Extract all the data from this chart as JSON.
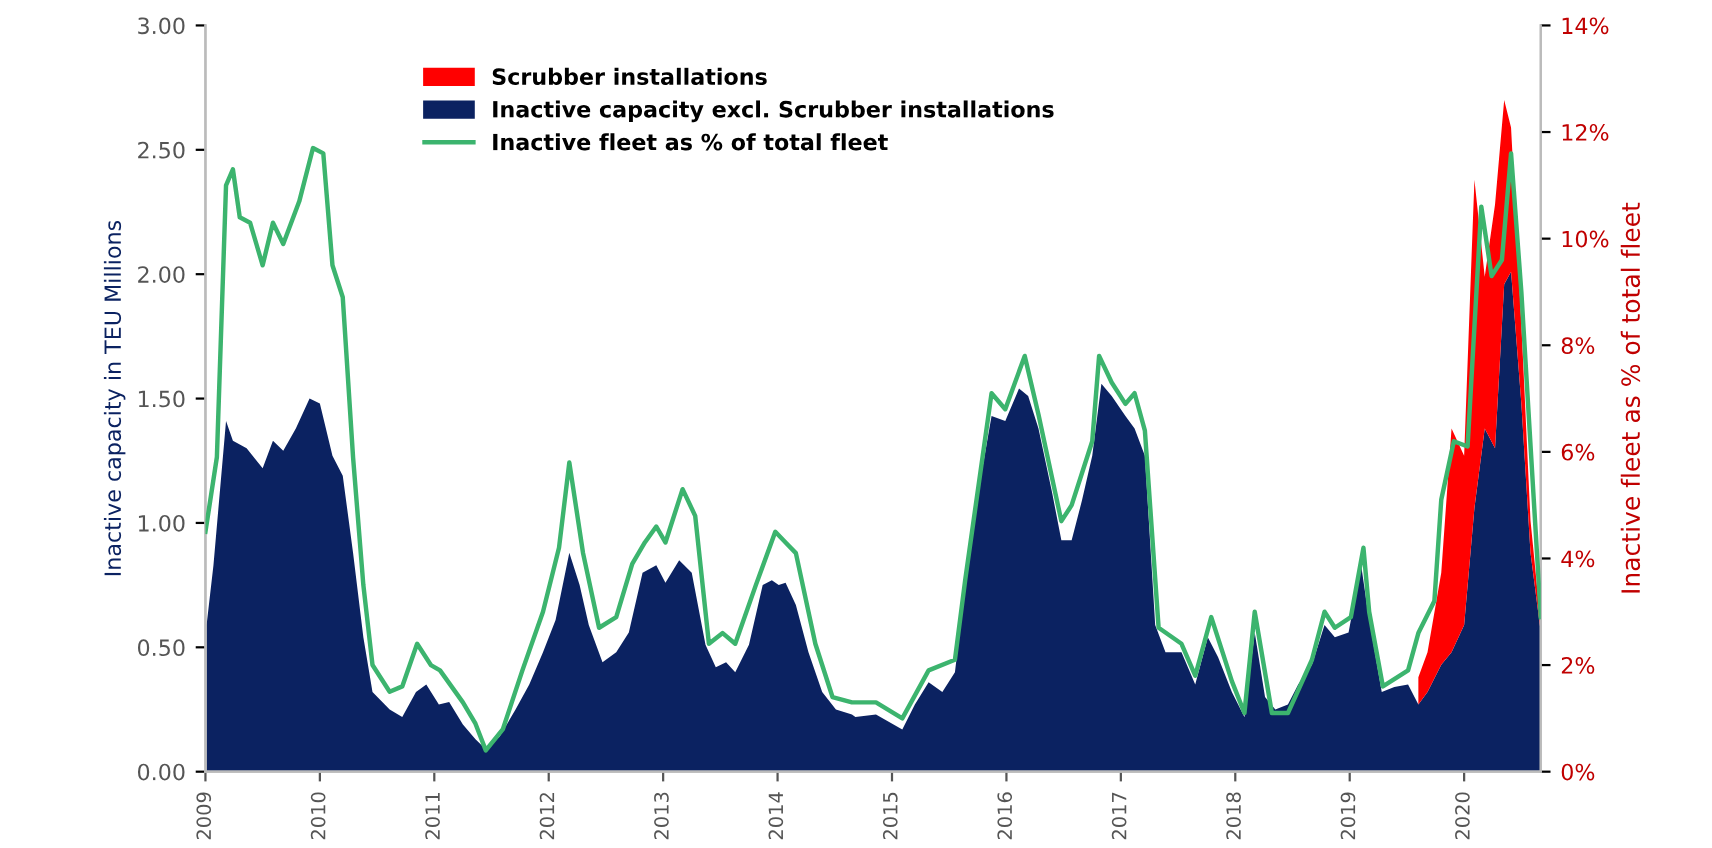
{
  "chart_data": {
    "type": "area",
    "stacked": true,
    "ylabel": "Inactive capacity in TEU Millions",
    "y2label": "Inactive fleet as % of total fleet",
    "xlim": [
      2009,
      2020.67
    ],
    "xticks": [
      2009,
      2010,
      2011,
      2012,
      2013,
      2014,
      2015,
      2016,
      2017,
      2018,
      2019,
      2020
    ],
    "ylim": [
      0,
      3
    ],
    "yticks": [
      {
        "value": 0,
        "label": "0.00"
      },
      {
        "value": 0.5,
        "label": "0.50"
      },
      {
        "value": 1,
        "label": "1.00"
      },
      {
        "value": 1.5,
        "label": "1.50"
      },
      {
        "value": 2,
        "label": "2.00"
      },
      {
        "value": 2.5,
        "label": "2.50"
      },
      {
        "value": 3,
        "label": "3.00"
      }
    ],
    "y2lim": [
      0,
      14
    ],
    "y2ticks": [
      {
        "value": 0,
        "label": "0%"
      },
      {
        "value": 2,
        "label": "2%"
      },
      {
        "value": 4,
        "label": "4%"
      },
      {
        "value": 6,
        "label": "6%"
      },
      {
        "value": 8,
        "label": "8%"
      },
      {
        "value": 10,
        "label": "10%"
      },
      {
        "value": 12,
        "label": "12%"
      },
      {
        "value": 14,
        "label": "14%"
      }
    ],
    "grid": false,
    "legend": "top",
    "x": [
      2009.01,
      2009.07,
      2009.18,
      2009.24,
      2009.36,
      2009.5,
      2009.59,
      2009.68,
      2009.79,
      2009.91,
      2010.0,
      2010.11,
      2010.2,
      2010.29,
      2010.38,
      2010.46,
      2010.61,
      2010.72,
      2010.84,
      2010.93,
      2011.04,
      2011.13,
      2011.25,
      2011.36,
      2011.45,
      2011.57,
      2011.71,
      2011.83,
      2011.95,
      2012.06,
      2012.18,
      2012.27,
      2012.35,
      2012.47,
      2012.59,
      2012.7,
      2012.82,
      2012.94,
      2013.02,
      2013.14,
      2013.25,
      2013.37,
      2013.46,
      2013.55,
      2013.63,
      2013.75,
      2013.87,
      2013.95,
      2014.01,
      2014.07,
      2014.16,
      2014.27,
      2014.39,
      2014.51,
      2014.65,
      2014.68,
      2014.86,
      2015.09,
      2015.2,
      2015.32,
      2015.44,
      2015.55,
      2015.64,
      2015.76,
      2015.87,
      2015.99,
      2016.11,
      2016.19,
      2016.28,
      2016.4,
      2016.48,
      2016.57,
      2016.66,
      2016.75,
      2016.83,
      2016.92,
      2017.04,
      2017.12,
      2017.21,
      2017.3,
      2017.39,
      2017.53,
      2017.65,
      2017.76,
      2017.85,
      2017.97,
      2018.08,
      2018.17,
      2018.26,
      2018.35,
      2018.46,
      2018.55,
      2018.67,
      2018.78,
      2018.87,
      2018.99,
      2019.1,
      2019.16,
      2019.28,
      2019.39,
      2019.51,
      2019.6,
      2019.68,
      2019.8,
      2019.89,
      2020.0,
      2020.09,
      2020.18,
      2020.27,
      2020.35,
      2020.41,
      2020.5,
      2020.58,
      2020.67
    ],
    "series": [
      {
        "name": "Inactive capacity excl. Scrubber installations",
        "color": "#0b2261",
        "values": [
          0.59,
          0.83,
          1.41,
          1.33,
          1.3,
          1.22,
          1.33,
          1.29,
          1.38,
          1.5,
          1.48,
          1.27,
          1.19,
          0.88,
          0.54,
          0.32,
          0.25,
          0.22,
          0.32,
          0.35,
          0.27,
          0.28,
          0.19,
          0.13,
          0.09,
          0.14,
          0.25,
          0.35,
          0.48,
          0.61,
          0.88,
          0.75,
          0.59,
          0.44,
          0.48,
          0.56,
          0.8,
          0.83,
          0.76,
          0.85,
          0.8,
          0.51,
          0.42,
          0.44,
          0.4,
          0.51,
          0.75,
          0.77,
          0.75,
          0.76,
          0.67,
          0.48,
          0.32,
          0.25,
          0.23,
          0.22,
          0.23,
          0.17,
          0.27,
          0.36,
          0.32,
          0.4,
          0.75,
          1.14,
          1.43,
          1.41,
          1.54,
          1.51,
          1.38,
          1.12,
          0.93,
          0.93,
          1.09,
          1.27,
          1.56,
          1.51,
          1.43,
          1.38,
          1.27,
          0.59,
          0.48,
          0.48,
          0.35,
          0.54,
          0.46,
          0.32,
          0.22,
          0.56,
          0.3,
          0.25,
          0.27,
          0.35,
          0.43,
          0.59,
          0.54,
          0.56,
          0.83,
          0.64,
          0.32,
          0.34,
          0.35,
          0.27,
          0.32,
          0.43,
          0.48,
          0.59,
          1.06,
          1.38,
          1.3,
          1.96,
          2.01,
          1.48,
          0.88,
          0.56
        ]
      },
      {
        "name": "Scrubber installations",
        "color": "#ff0000",
        "values": [
          null,
          null,
          null,
          null,
          null,
          null,
          null,
          null,
          null,
          null,
          null,
          null,
          null,
          null,
          null,
          null,
          null,
          null,
          null,
          null,
          null,
          null,
          null,
          null,
          null,
          null,
          null,
          null,
          null,
          null,
          null,
          null,
          null,
          null,
          null,
          null,
          null,
          null,
          null,
          null,
          null,
          null,
          null,
          null,
          null,
          null,
          null,
          null,
          null,
          null,
          null,
          null,
          null,
          null,
          null,
          null,
          null,
          null,
          null,
          null,
          null,
          null,
          null,
          null,
          null,
          null,
          null,
          null,
          null,
          null,
          null,
          null,
          null,
          null,
          null,
          null,
          null,
          null,
          null,
          null,
          null,
          null,
          null,
          null,
          null,
          null,
          null,
          null,
          null,
          null,
          null,
          null,
          null,
          null,
          null,
          null,
          null,
          null,
          null,
          null,
          null,
          0.11,
          0.16,
          0.37,
          0.9,
          0.68,
          1.32,
          0.61,
          0.98,
          0.74,
          0.58,
          0.32,
          0.13,
          0.03
        ]
      },
      {
        "name": "Inactive fleet as % of total fleet",
        "type": "line",
        "axis": "y2",
        "color": "#3cb46e",
        "x": [
          2009.0,
          2009.1,
          2009.18,
          2009.24,
          2009.3,
          2009.39,
          2009.5,
          2009.59,
          2009.68,
          2009.82,
          2009.94,
          2010.03,
          2010.11,
          2010.2,
          2010.29,
          2010.38,
          2010.46,
          2010.61,
          2010.72,
          2010.85,
          2010.97,
          2011.05,
          2011.25,
          2011.36,
          2011.45,
          2011.6,
          2011.77,
          2011.95,
          2012.09,
          2012.18,
          2012.3,
          2012.44,
          2012.59,
          2012.73,
          2012.84,
          2012.94,
          2013.02,
          2013.17,
          2013.28,
          2013.4,
          2013.52,
          2013.63,
          2013.81,
          2013.98,
          2014.07,
          2014.16,
          2014.33,
          2014.48,
          2014.65,
          2014.86,
          2015.09,
          2015.32,
          2015.55,
          2015.64,
          2015.87,
          2015.99,
          2016.16,
          2016.28,
          2016.48,
          2016.57,
          2016.75,
          2016.81,
          2016.92,
          2017.04,
          2017.12,
          2017.21,
          2017.33,
          2017.53,
          2017.65,
          2017.79,
          2017.97,
          2018.08,
          2018.17,
          2018.32,
          2018.46,
          2018.67,
          2018.78,
          2018.87,
          2019.01,
          2019.12,
          2019.17,
          2019.29,
          2019.51,
          2019.6,
          2019.74,
          2019.8,
          2019.91,
          2020.03,
          2020.15,
          2020.24,
          2020.33,
          2020.41,
          2020.5,
          2020.67
        ],
        "values": [
          4.5,
          5.9,
          11.0,
          11.3,
          10.4,
          10.3,
          9.5,
          10.3,
          9.9,
          10.7,
          11.7,
          11.6,
          9.5,
          8.9,
          5.9,
          3.5,
          2.0,
          1.5,
          1.6,
          2.4,
          2.0,
          1.9,
          1.3,
          0.9,
          0.4,
          0.8,
          1.9,
          3.0,
          4.2,
          5.8,
          4.1,
          2.7,
          2.9,
          3.9,
          4.3,
          4.6,
          4.3,
          5.3,
          4.8,
          2.4,
          2.6,
          2.4,
          3.5,
          4.5,
          4.3,
          4.1,
          2.4,
          1.4,
          1.3,
          1.3,
          1.0,
          1.9,
          2.1,
          3.6,
          7.1,
          6.8,
          7.8,
          6.7,
          4.7,
          5.0,
          6.2,
          7.8,
          7.3,
          6.9,
          7.1,
          6.4,
          2.7,
          2.4,
          1.8,
          2.9,
          1.7,
          1.1,
          3.0,
          1.1,
          1.1,
          2.1,
          3.0,
          2.7,
          2.9,
          4.2,
          3.0,
          1.6,
          1.9,
          2.6,
          3.2,
          5.1,
          6.2,
          6.1,
          10.6,
          9.3,
          9.6,
          11.6,
          9.0,
          2.9
        ]
      }
    ]
  }
}
